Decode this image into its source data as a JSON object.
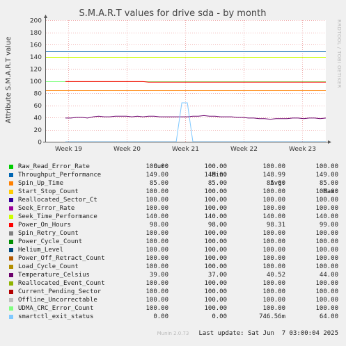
{
  "chart_data": {
    "type": "line",
    "title": "S.M.A.R.T values for drive sda - by month",
    "ylabel": "Attribute S.M.A.R.T value",
    "ylim": [
      0,
      200
    ],
    "yticks": [
      0,
      20,
      40,
      60,
      80,
      100,
      120,
      140,
      160,
      180,
      200
    ],
    "xticks": [
      "Week 19",
      "Week 20",
      "Week 21",
      "Week 22",
      "Week 23"
    ],
    "grid": true,
    "side_label": "RRDTOOL / TOBI OETIKER",
    "legend_headers": {
      "cur": "Cur:",
      "min": "Min:",
      "avg": "Avg:",
      "max": "Max:"
    },
    "series": [
      {
        "name": "Raw_Read_Error_Rate",
        "color": "#00cc00",
        "cur": "100.00",
        "min": "100.00",
        "avg": "100.00",
        "max": "100.00",
        "values": [
          100
        ]
      },
      {
        "name": "Throughput_Performance",
        "color": "#0066b3",
        "cur": "149.00",
        "min": "148.00",
        "avg": "148.99",
        "max": "149.00",
        "values": [
          149
        ]
      },
      {
        "name": "Spin_Up_Time",
        "color": "#ff8000",
        "cur": "85.00",
        "min": "85.00",
        "avg": "85.00",
        "max": "85.00",
        "values": [
          85
        ]
      },
      {
        "name": "Start_Stop_Count",
        "color": "#ffcc00",
        "cur": "100.00",
        "min": "100.00",
        "avg": "100.00",
        "max": "100.00",
        "values": [
          100
        ]
      },
      {
        "name": "Reallocated_Sector_Ct",
        "color": "#330099",
        "cur": "100.00",
        "min": "100.00",
        "avg": "100.00",
        "max": "100.00",
        "values": [
          100
        ]
      },
      {
        "name": "Seek_Error_Rate",
        "color": "#990099",
        "cur": "100.00",
        "min": "100.00",
        "avg": "100.00",
        "max": "100.00",
        "values": [
          100
        ]
      },
      {
        "name": "Seek_Time_Performance",
        "color": "#ccff00",
        "cur": "140.00",
        "min": "140.00",
        "avg": "140.00",
        "max": "140.00",
        "values": [
          140
        ]
      },
      {
        "name": "Power_On_Hours",
        "color": "#ff0000",
        "cur": "98.00",
        "min": "98.00",
        "avg": "98.31",
        "max": "99.00",
        "values": [
          99,
          99,
          99,
          99,
          99,
          99,
          99,
          99,
          99,
          99,
          99,
          99,
          99,
          99,
          99,
          98,
          98,
          98,
          98,
          98,
          98,
          98,
          98,
          98,
          98,
          98,
          98,
          98,
          98,
          98,
          98,
          98,
          98,
          98,
          98,
          98,
          98,
          98,
          98,
          98,
          98,
          98,
          98,
          98,
          98,
          98,
          98,
          98
        ]
      },
      {
        "name": "Spin_Retry_Count",
        "color": "#808080",
        "cur": "100.00",
        "min": "100.00",
        "avg": "100.00",
        "max": "100.00",
        "values": [
          100
        ]
      },
      {
        "name": "Power_Cycle_Count",
        "color": "#008f00",
        "cur": "100.00",
        "min": "100.00",
        "avg": "100.00",
        "max": "100.00",
        "values": [
          100
        ]
      },
      {
        "name": "Helium_Level",
        "color": "#00487d",
        "cur": "100.00",
        "min": "100.00",
        "avg": "100.00",
        "max": "100.00",
        "values": [
          100
        ]
      },
      {
        "name": "Power_Off_Retract_Count",
        "color": "#b35a00",
        "cur": "100.00",
        "min": "100.00",
        "avg": "100.00",
        "max": "100.00",
        "values": [
          100
        ]
      },
      {
        "name": "Load_Cycle_Count",
        "color": "#b38f00",
        "cur": "100.00",
        "min": "100.00",
        "avg": "100.00",
        "max": "100.00",
        "values": [
          100
        ]
      },
      {
        "name": "Temperature_Celsius",
        "color": "#6b006b",
        "cur": "39.00",
        "min": "37.00",
        "avg": "40.52",
        "max": "44.00",
        "values": [
          39,
          39,
          40,
          40,
          39,
          41,
          42,
          41,
          41,
          42,
          42,
          42,
          41,
          42,
          41,
          42,
          42,
          41,
          41,
          41,
          41,
          41,
          41,
          42,
          42,
          43,
          42,
          42,
          41,
          41,
          41,
          40,
          40,
          39,
          39,
          38,
          38,
          37,
          38,
          38,
          38,
          39,
          39,
          38,
          39,
          39,
          38,
          39
        ]
      },
      {
        "name": "Reallocated_Event_Count",
        "color": "#8fb300",
        "cur": "100.00",
        "min": "100.00",
        "avg": "100.00",
        "max": "100.00",
        "values": [
          100
        ]
      },
      {
        "name": "Current_Pending_Sector",
        "color": "#b30000",
        "cur": "100.00",
        "min": "100.00",
        "avg": "100.00",
        "max": "100.00",
        "values": [
          100
        ]
      },
      {
        "name": "Offline_Uncorrectable",
        "color": "#bebebe",
        "cur": "100.00",
        "min": "100.00",
        "avg": "100.00",
        "max": "100.00",
        "values": [
          100
        ]
      },
      {
        "name": "UDMA_CRC_Error_Count",
        "color": "#80ff80",
        "cur": "100.00",
        "min": "100.00",
        "avg": "100.00",
        "max": "100.00",
        "values": [
          100
        ]
      },
      {
        "name": "smartctl_exit_status",
        "color": "#80c9ff",
        "cur": "0.00",
        "min": "0.00",
        "avg": "746.56m",
        "max": "64.00",
        "values": [
          0,
          0,
          0,
          0,
          0,
          0,
          0,
          0,
          0,
          0,
          0,
          0,
          0,
          0,
          0,
          0,
          0,
          0,
          0,
          0,
          0,
          64,
          64,
          0,
          0,
          0,
          0,
          0,
          0,
          0,
          0,
          0,
          0,
          0,
          0,
          0,
          0,
          0,
          0,
          0,
          0,
          0,
          0,
          0,
          0,
          0,
          0,
          0
        ]
      }
    ]
  },
  "last_update": "Last update: Sat Jun  7 03:00:04 2025",
  "footer": "Munin 2.0.73"
}
